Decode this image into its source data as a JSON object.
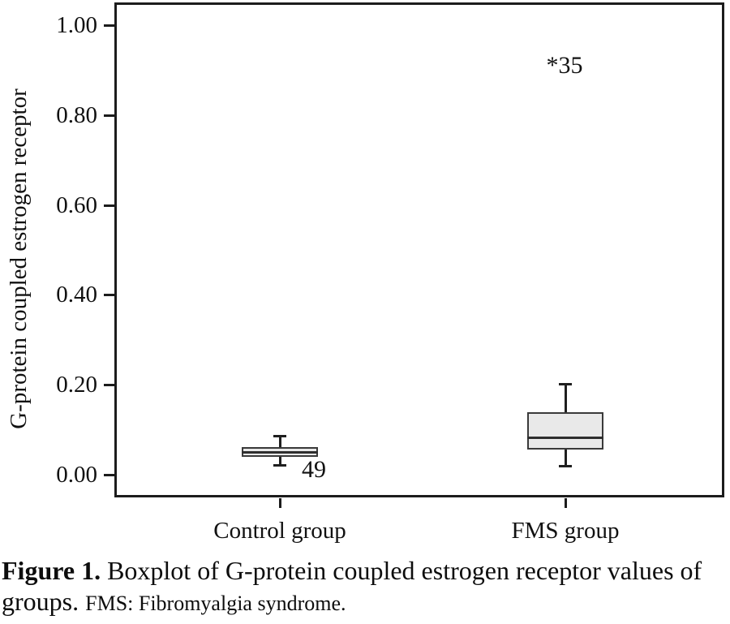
{
  "chart_data": {
    "type": "boxplot",
    "title": "",
    "xlabel": "",
    "ylabel": "G-protein coupled estrogen receptor",
    "ylim": [
      0.0,
      1.0
    ],
    "grid": false,
    "legend": "none",
    "ytick_labels": [
      "0.00",
      "0.20",
      "0.40",
      "0.60",
      "0.80",
      "1.00"
    ],
    "ytick_values": [
      0.0,
      0.2,
      0.4,
      0.6,
      0.8,
      1.0
    ],
    "categories": [
      "Control group",
      "FMS group"
    ],
    "series": [
      {
        "name": "Control group",
        "whisker_low": 0.022,
        "q1": 0.04,
        "median": 0.05,
        "q3": 0.061,
        "whisker_high": 0.085
      },
      {
        "name": "FMS group",
        "whisker_low": 0.02,
        "q1": 0.056,
        "median": 0.083,
        "q3": 0.139,
        "whisker_high": 0.2
      }
    ],
    "annotations": [
      {
        "label": "49",
        "category_index": 0,
        "value": 0.011,
        "dx": 42
      },
      {
        "label": "*35",
        "category_index": 1,
        "value": 0.91,
        "dx": -1
      }
    ],
    "colors": {
      "box_fill": "#e9e9e9",
      "line": "#1f1f1f",
      "background": "#ffffff"
    }
  },
  "caption": {
    "figure_label": "Figure 1.",
    "text": "Boxplot of G-protein coupled estrogen receptor values of groups.",
    "note": "FMS: Fibromyalgia syndrome."
  }
}
